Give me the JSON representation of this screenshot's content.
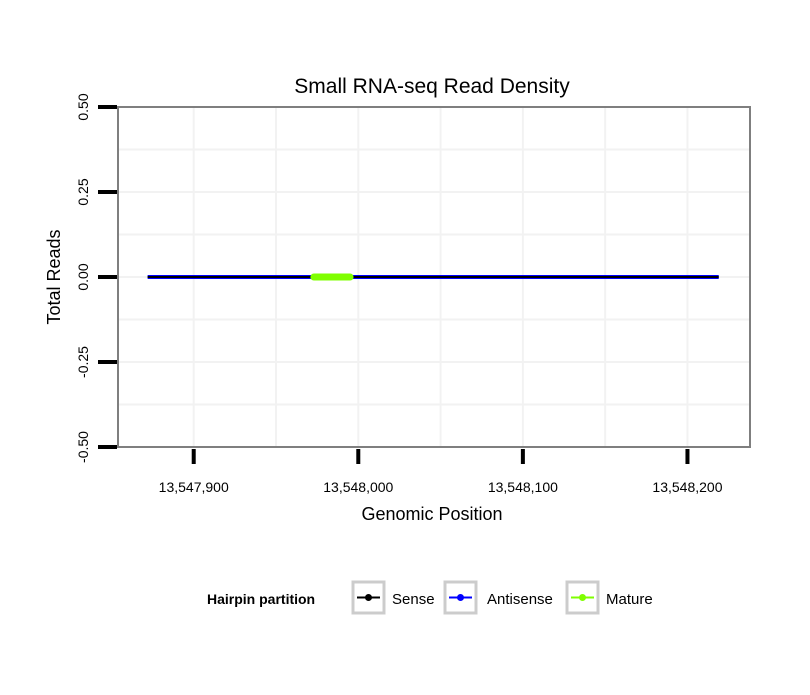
{
  "chart_data": {
    "type": "line",
    "title": "Small RNA-seq Read Density",
    "xlabel": "Genomic Position",
    "ylabel": "Total Reads",
    "xlim": [
      13547854,
      13548238
    ],
    "ylim": [
      -0.5,
      0.5
    ],
    "x_ticks": [
      13547900,
      13548000,
      13548100,
      13548200
    ],
    "x_tick_labels": [
      "13,547,900",
      "13,548,000",
      "13,548,100",
      "13,548,200"
    ],
    "y_ticks": [
      0.5,
      0.25,
      0,
      -0.25,
      -0.5
    ],
    "y_tick_labels": [
      "0.50",
      "0.25",
      "0.00",
      "-0.25",
      "-0.50"
    ],
    "grid": true,
    "legend": {
      "title": "Hairpin partition",
      "placement": "bottom",
      "entries": [
        "Sense",
        "Antisense",
        "Mature"
      ]
    },
    "series": [
      {
        "name": "Antisense",
        "color": "#0000ff",
        "x": [
          13547872,
          13548219
        ],
        "y": [
          0,
          0
        ]
      },
      {
        "name": "Sense",
        "color": "#000000",
        "x": [
          13547872,
          13548219
        ],
        "y": [
          0,
          0
        ]
      },
      {
        "name": "Mature",
        "color": "#7fff00",
        "x": [
          13547973,
          13547995
        ],
        "y": [
          0,
          0
        ]
      }
    ]
  }
}
